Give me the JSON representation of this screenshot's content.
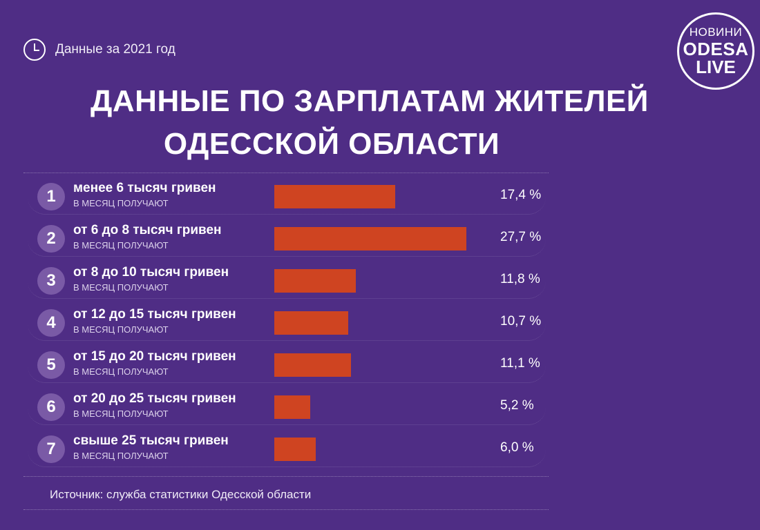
{
  "header": {
    "date_text": "Данные за 2021 год",
    "logo": {
      "line1": "НОВИНИ",
      "line2": "ODESA",
      "line3": "LIVE"
    }
  },
  "title": {
    "line1": "ДАННЫЕ ПО ЗАРПЛАТАМ ЖИТЕЛЕЙ",
    "line2": "ОДЕССКОЙ ОБЛАСТИ"
  },
  "colors": {
    "background": "#4f2d85",
    "bar": "#cf4421",
    "badge": "#7a5aa6"
  },
  "chart_data": {
    "type": "bar",
    "orientation": "horizontal",
    "title": "ДАННЫЕ ПО ЗАРПЛАТАМ ЖИТЕЛЕЙ ОДЕССКОЙ ОБЛАСТИ",
    "unit": "%",
    "xlim": [
      0,
      27.7
    ],
    "categories": [
      {
        "rank": "1",
        "label": "менее 6 тысяч гривен",
        "sub": "В МЕСЯЦ ПОЛУЧАЮТ",
        "value": 17.4,
        "display": "17,4 %"
      },
      {
        "rank": "2",
        "label": "от 6 до 8 тысяч гривен",
        "sub": "В МЕСЯЦ ПОЛУЧАЮТ",
        "value": 27.7,
        "display": "27,7 %"
      },
      {
        "rank": "3",
        "label": "от 8 до 10 тысяч гривен",
        "sub": "В МЕСЯЦ ПОЛУЧАЮТ",
        "value": 11.8,
        "display": "11,8 %"
      },
      {
        "rank": "4",
        "label": "от 12 до 15 тысяч гривен",
        "sub": "В МЕСЯЦ ПОЛУЧАЮТ",
        "value": 10.7,
        "display": "10,7 %"
      },
      {
        "rank": "5",
        "label": "от 15 до 20 тысяч гривен",
        "sub": "В МЕСЯЦ ПОЛУЧАЮТ",
        "value": 11.1,
        "display": "11,1 %"
      },
      {
        "rank": "6",
        "label": "от 20 до 25 тысяч гривен",
        "sub": "В МЕСЯЦ ПОЛУЧАЮТ",
        "value": 5.2,
        "display": "5,2 %"
      },
      {
        "rank": "7",
        "label": "свыше 25 тысяч гривен",
        "sub": "В МЕСЯЦ ПОЛУЧАЮТ",
        "value": 6.0,
        "display": "6,0 %"
      }
    ]
  },
  "source": "Источник: служба статистики Одесской области"
}
